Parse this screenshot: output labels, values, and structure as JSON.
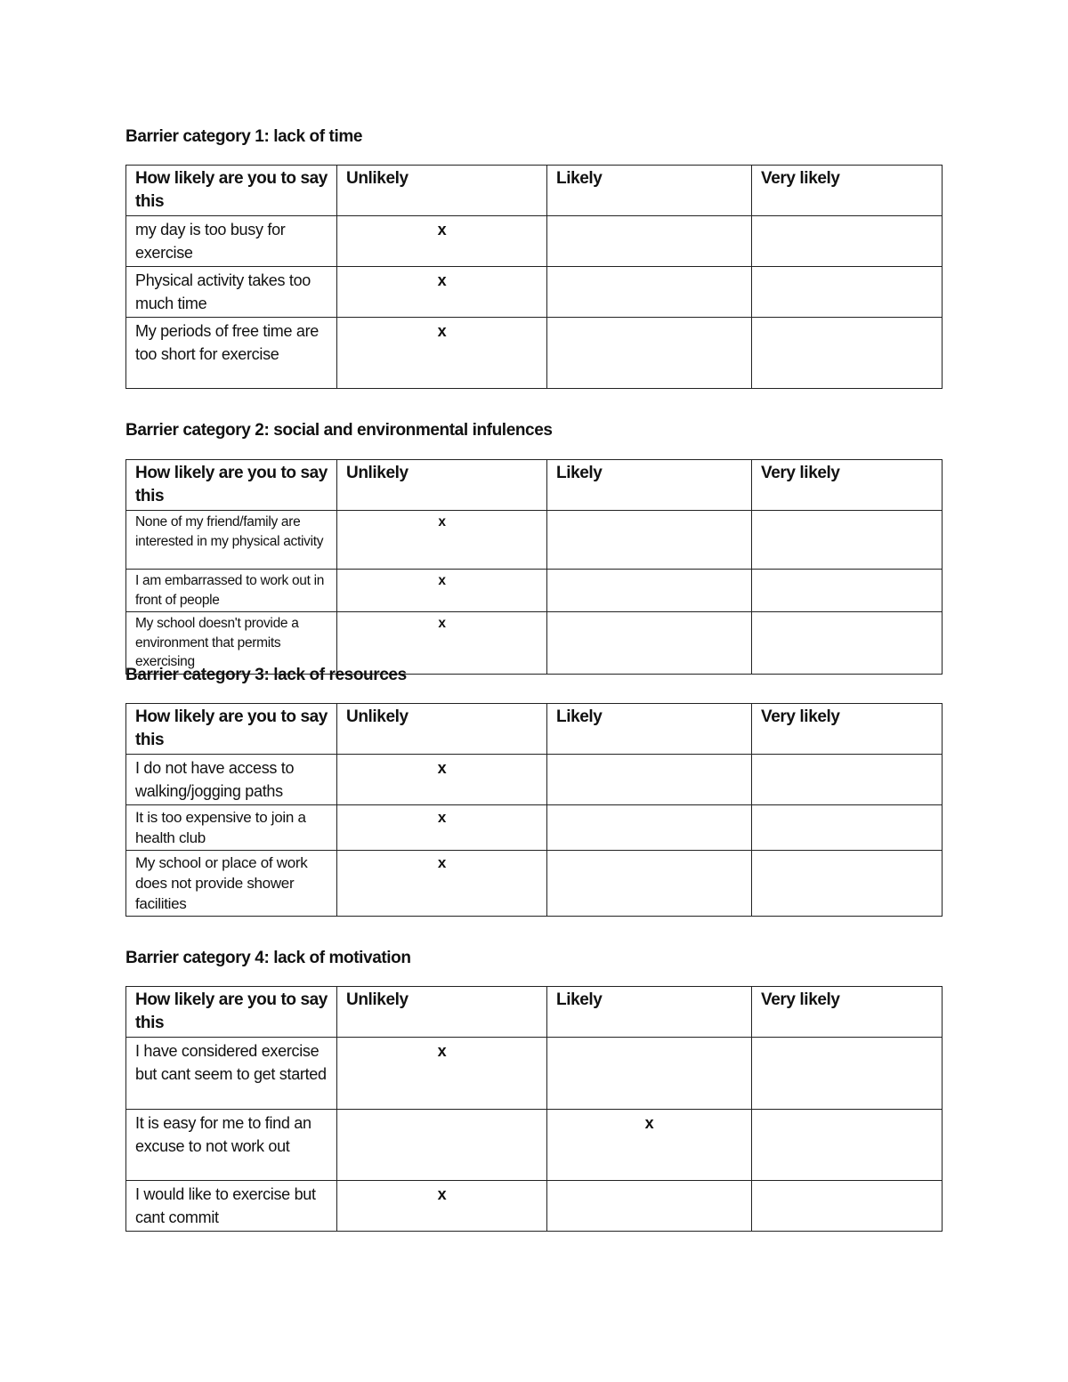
{
  "header_row": [
    "How likely are you to say this",
    "Unlikely",
    "Likely",
    "Very likely"
  ],
  "sections": [
    {
      "title": "Barrier category 1: lack of time",
      "rows": [
        {
          "statement": "my day is too busy for exercise",
          "unlikely": "x",
          "likely": "",
          "very_likely": ""
        },
        {
          "statement": "Physical activity takes too much time",
          "unlikely": "x",
          "likely": "",
          "very_likely": ""
        },
        {
          "statement": "My periods of free time are too short for exercise",
          "unlikely": "x",
          "likely": "",
          "very_likely": ""
        }
      ]
    },
    {
      "title": "Barrier category 2: social and environmental infulences",
      "rows": [
        {
          "statement": "None of my friend/family are interested in my physical activity",
          "unlikely": "x",
          "likely": "",
          "very_likely": ""
        },
        {
          "statement": "I am embarrassed to work out in front of people",
          "unlikely": "x",
          "likely": "",
          "very_likely": ""
        },
        {
          "statement": "My school doesn't provide a environment that permits exercising",
          "unlikely": "x",
          "likely": "",
          "very_likely": ""
        }
      ]
    },
    {
      "title": "Barrier category 3: lack of resources",
      "rows": [
        {
          "statement": "I do not have access to walking/jogging paths",
          "unlikely": "x",
          "likely": "",
          "very_likely": ""
        },
        {
          "statement": "It is too expensive to join a health club",
          "unlikely": "x",
          "likely": "",
          "very_likely": ""
        },
        {
          "statement": "My school or place of work does not provide shower facilities",
          "unlikely": "x",
          "likely": "",
          "very_likely": ""
        }
      ]
    },
    {
      "title": "Barrier category 4: lack of motivation",
      "rows": [
        {
          "statement": "I have considered exercise but cant seem to get started",
          "unlikely": "x",
          "likely": "",
          "very_likely": ""
        },
        {
          "statement": "It is easy for me to find an excuse to not work out",
          "unlikely": "",
          "likely": "x",
          "very_likely": ""
        },
        {
          "statement": "I would like to exercise but cant commit",
          "unlikely": "x",
          "likely": "",
          "very_likely": ""
        }
      ]
    }
  ]
}
